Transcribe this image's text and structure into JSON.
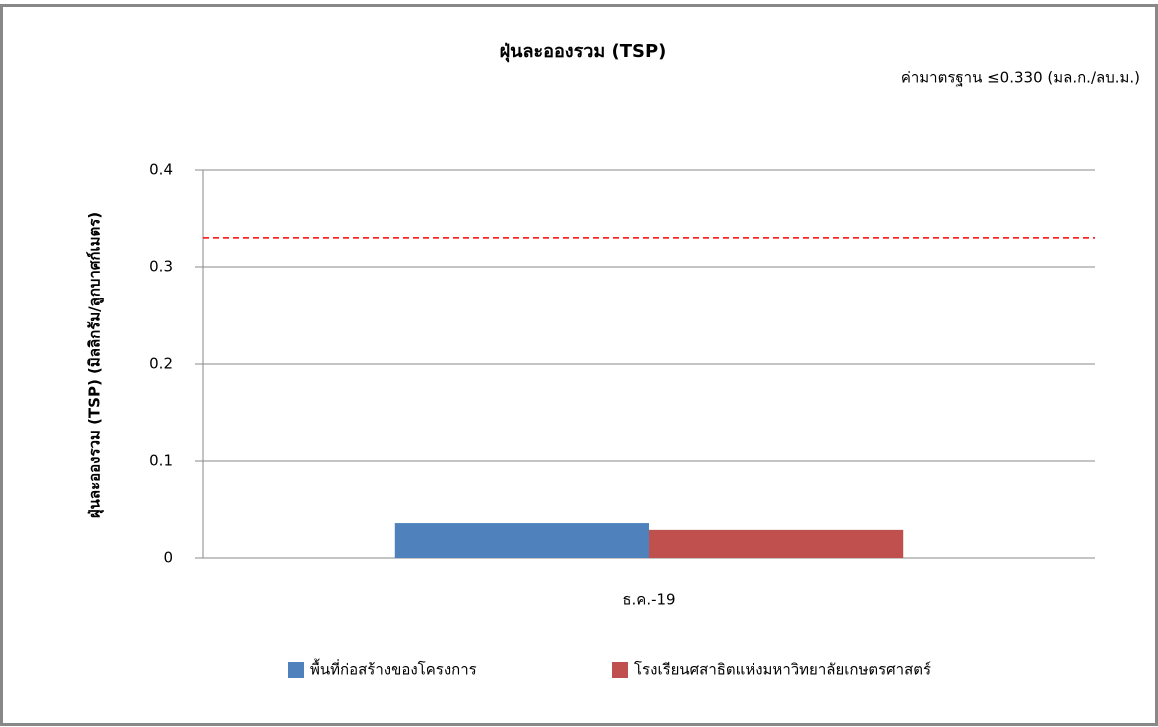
{
  "chart_data": {
    "type": "bar",
    "title": "ฝุ่นละอองรวม (TSP)",
    "annotation": "ค่ามาตรฐาน ≤0.330 (มล.ก./ลบ.ม.)",
    "y_label": "ฝุ่นละอองรวม (TSP) (มิลลิกรัม/ลูกบาศก์เมตร)",
    "categories": [
      "ธ.ค.-19"
    ],
    "series": [
      {
        "name": "พื้นที่ก่อสร้างของโครงการ",
        "color": "#4f81bd",
        "values": [
          0.036
        ]
      },
      {
        "name": "โรงเรียนศสาธิตแห่งมหาวิทยาลัยเกษตรศาสตร์",
        "color": "#c0504d",
        "values": [
          0.029
        ]
      }
    ],
    "reference_line": {
      "value": 0.33,
      "color": "#ff0000"
    },
    "ylim": [
      0,
      0.4
    ],
    "yticks": [
      0,
      0.1,
      0.2,
      0.3,
      0.4
    ],
    "grid": true,
    "legend": "bottom"
  }
}
